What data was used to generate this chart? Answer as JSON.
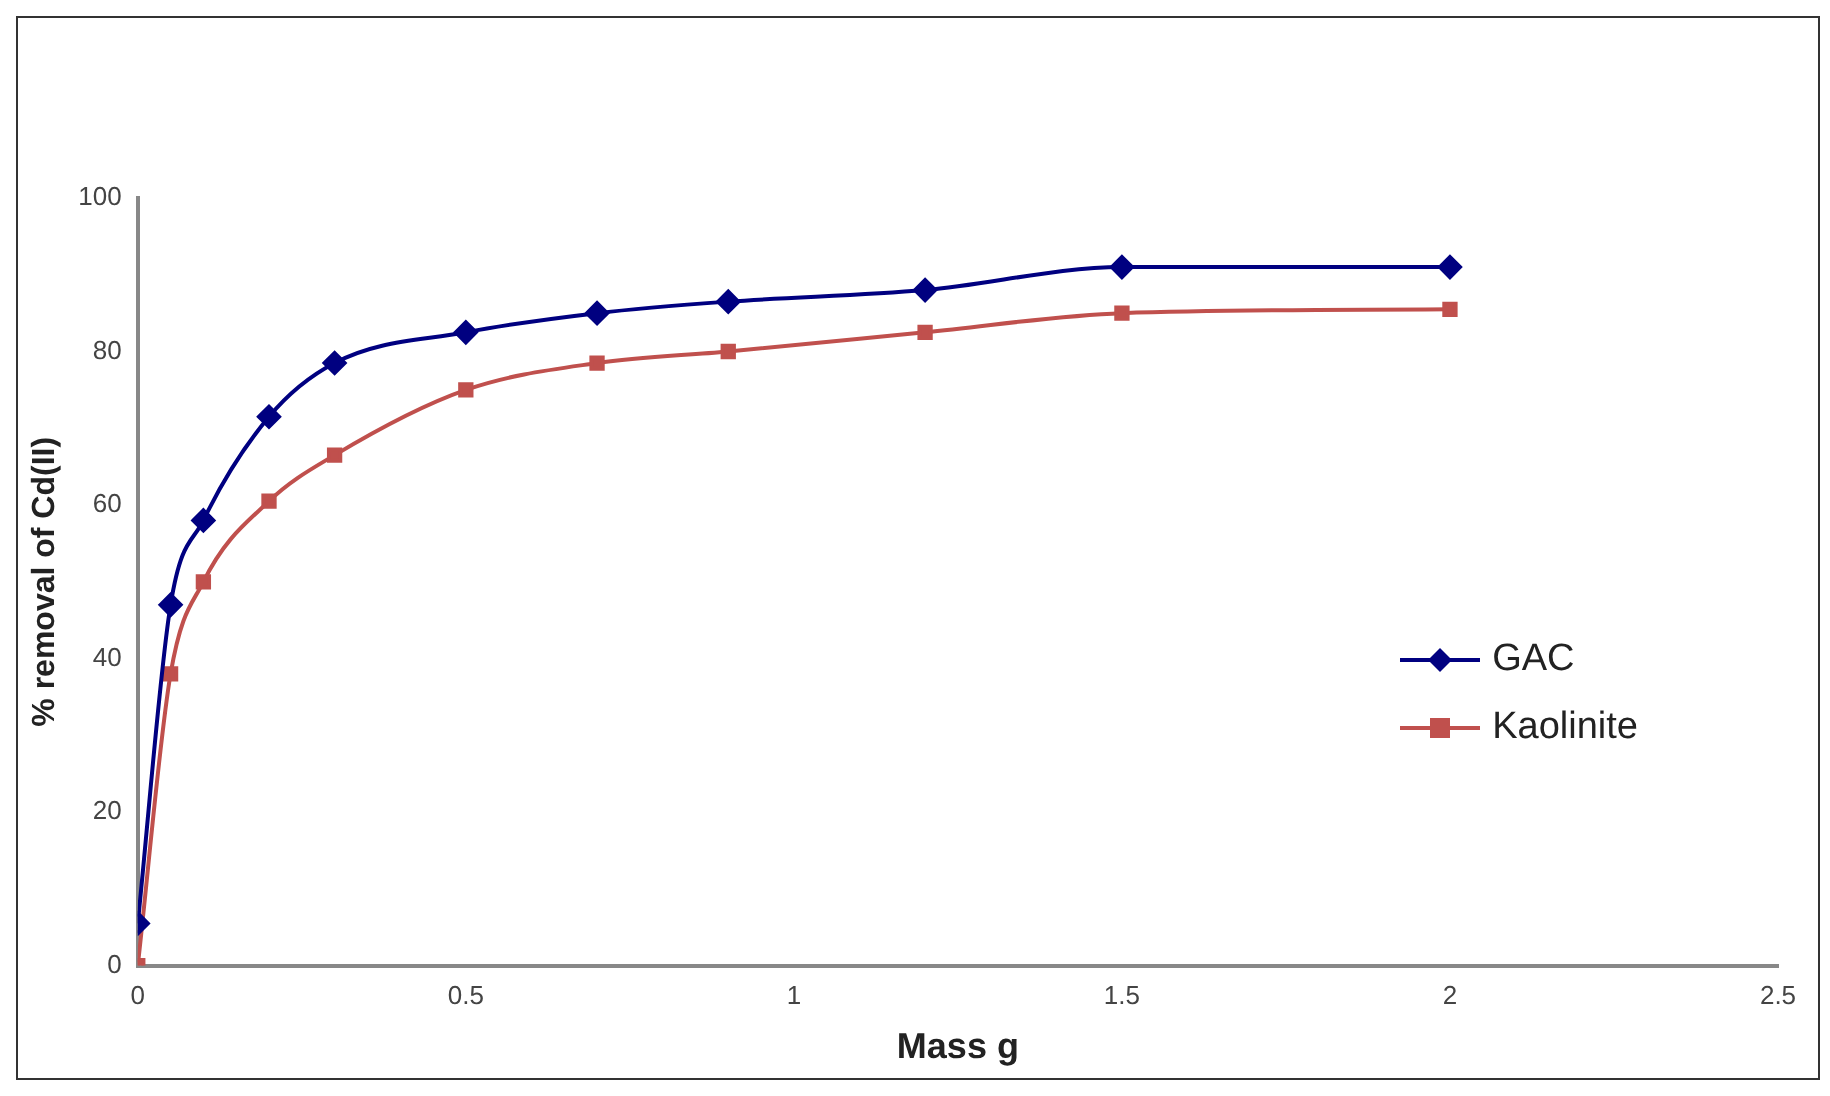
{
  "chart_data": {
    "type": "line",
    "xlabel": "Mass g",
    "ylabel": "% removal of Cd(II)",
    "x": [
      0,
      0.05,
      0.1,
      0.2,
      0.3,
      0.5,
      0.7,
      0.9,
      1.2,
      1.5,
      2
    ],
    "series": [
      {
        "name": "GAC",
        "color": "#000080",
        "marker": "diamond",
        "values": [
          5.5,
          47,
          58,
          71.5,
          78.5,
          82.5,
          85,
          86.5,
          88,
          91,
          91
        ]
      },
      {
        "name": "Kaolinite",
        "color": "#c0504d",
        "marker": "square",
        "values": [
          0,
          38,
          50,
          60.5,
          66.5,
          75,
          78.5,
          80,
          82.5,
          85,
          85.5
        ]
      }
    ],
    "xlim": [
      0,
      2.5
    ],
    "xticks": [
      0,
      0.5,
      1,
      1.5,
      2,
      2.5
    ],
    "ylim": [
      0,
      100
    ],
    "yticks": [
      0,
      20,
      40,
      60,
      80,
      100
    ],
    "grid": false,
    "legend": "right",
    "line_style": "solid"
  }
}
